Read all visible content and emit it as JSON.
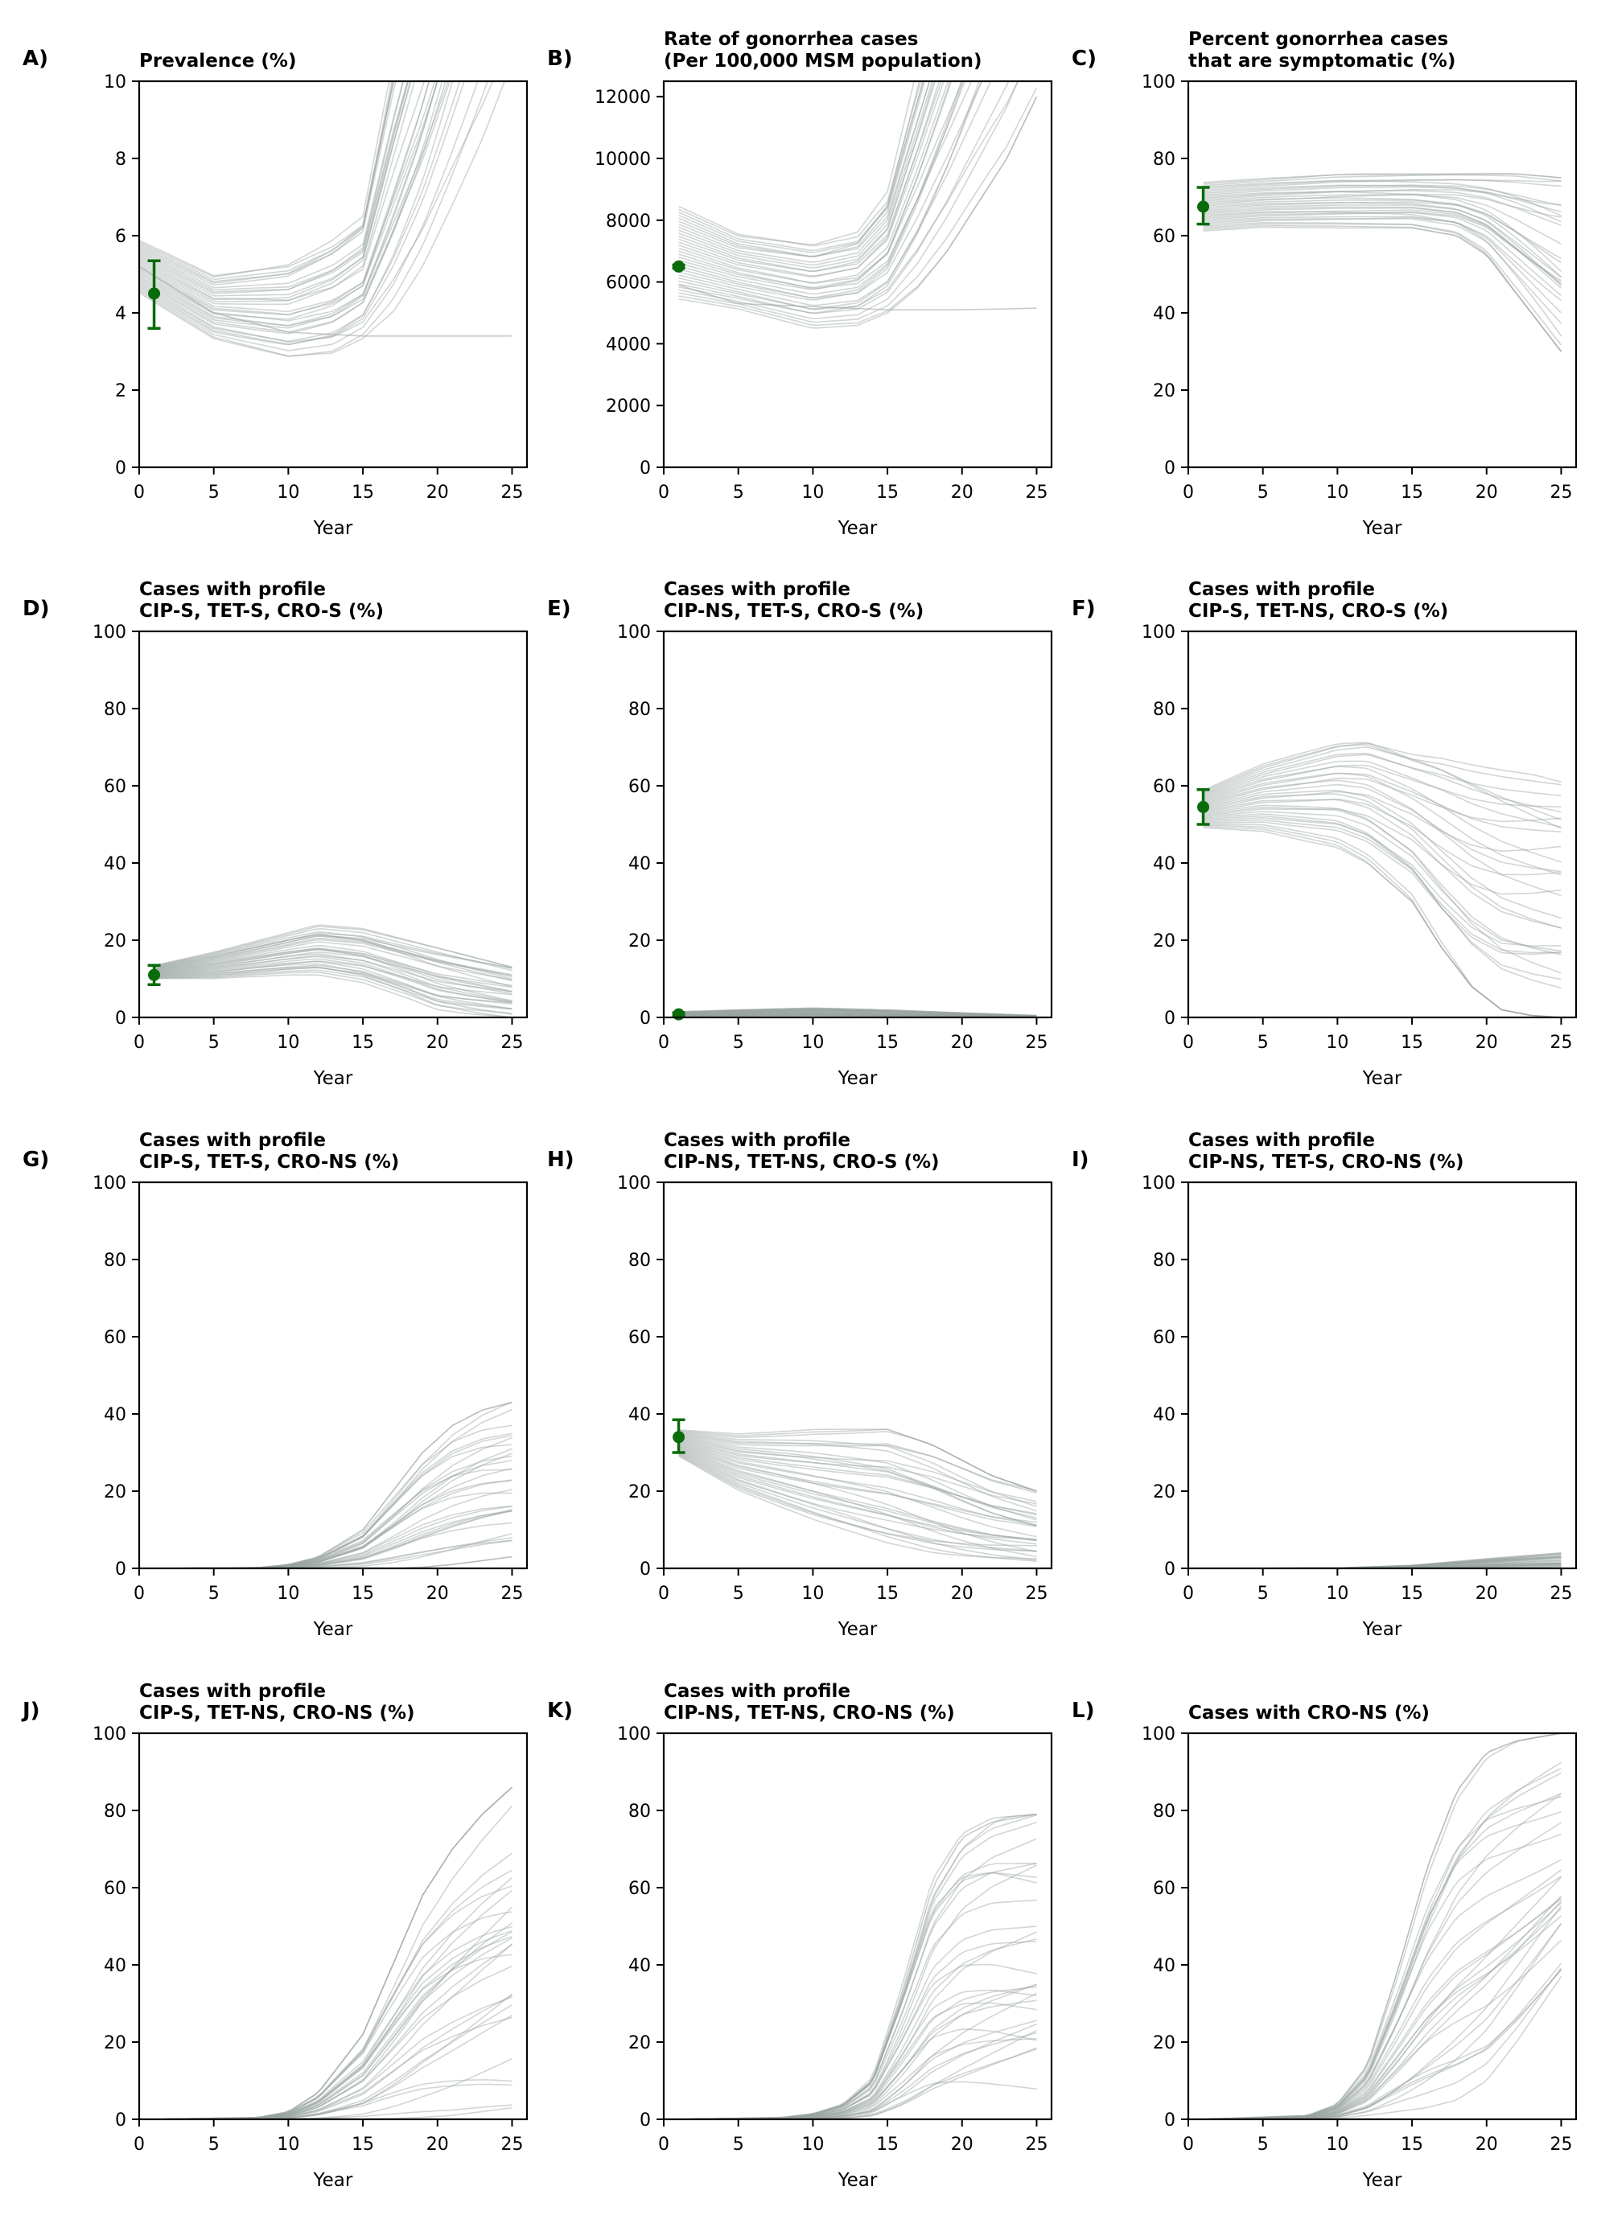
{
  "chart_data": [
    {
      "id": "A",
      "letter": "A)",
      "type": "line",
      "title_lines": [
        "Prevalence (%)"
      ],
      "xlabel": "Year",
      "xlim": [
        0,
        26
      ],
      "xticks": [
        0,
        5,
        10,
        15,
        20,
        25
      ],
      "ylim": [
        0,
        10
      ],
      "yticks": [
        0,
        2,
        4,
        6,
        8,
        10
      ],
      "bands": [
        {
          "x": [
            0,
            5,
            10,
            13,
            15,
            17,
            19,
            21,
            23,
            25
          ],
          "lo": [
            4.5,
            3.3,
            2.8,
            2.9,
            3.3,
            4.0,
            5.2,
            6.8,
            8.5,
            10.5
          ],
          "hi": [
            5.9,
            5.0,
            5.3,
            5.9,
            6.5,
            10.5,
            14,
            18,
            22,
            26
          ]
        }
      ],
      "series": [
        {
          "x": [
            0,
            5,
            10,
            15,
            20,
            25
          ],
          "y": [
            5.2,
            4.0,
            3.5,
            3.4,
            3.4,
            3.4
          ]
        }
      ],
      "observed": [
        {
          "x": 1,
          "y": 4.5,
          "err_lo": 3.6,
          "err_hi": 5.35
        }
      ]
    },
    {
      "id": "B",
      "letter": "B)",
      "type": "line",
      "title_lines": [
        "Rate of gonorrhea cases",
        "(Per 100,000 MSM population)"
      ],
      "xlabel": "Year",
      "xlim": [
        0,
        26
      ],
      "xticks": [
        0,
        5,
        10,
        15,
        20,
        25
      ],
      "ylim": [
        0,
        12500
      ],
      "yticks": [
        0,
        2000,
        4000,
        6000,
        8000,
        10000,
        12000
      ],
      "bands": [
        {
          "x": [
            1,
            5,
            10,
            13,
            15,
            17,
            19,
            21,
            23,
            25
          ],
          "lo": [
            5400,
            5100,
            4500,
            4600,
            5000,
            5800,
            7000,
            8500,
            10000,
            12000
          ],
          "hi": [
            8500,
            7600,
            7300,
            7700,
            9000,
            13000,
            17000,
            21000,
            25000,
            29000
          ]
        }
      ],
      "series": [
        {
          "x": [
            1,
            5,
            10,
            15,
            20,
            25
          ],
          "y": [
            5900,
            5300,
            5200,
            5100,
            5100,
            5150
          ]
        }
      ],
      "observed": [
        {
          "x": 1,
          "y": 6500,
          "err_lo": 6450,
          "err_hi": 6550
        }
      ]
    },
    {
      "id": "C",
      "letter": "C)",
      "type": "line",
      "title_lines": [
        "Percent gonorrhea cases",
        "that are symptomatic (%)"
      ],
      "xlabel": "Year",
      "xlim": [
        0,
        26
      ],
      "xticks": [
        0,
        5,
        10,
        15,
        20,
        25
      ],
      "ylim": [
        0,
        100
      ],
      "yticks": [
        0,
        20,
        40,
        60,
        80,
        100
      ],
      "bands": [
        {
          "x": [
            1,
            5,
            10,
            15,
            18,
            20,
            22,
            25
          ],
          "lo": [
            61,
            62,
            62,
            62,
            60,
            55,
            45,
            30
          ],
          "hi": [
            74,
            75,
            76,
            76,
            76,
            76,
            76,
            75
          ]
        }
      ],
      "observed": [
        {
          "x": 1,
          "y": 67.5,
          "err_lo": 63,
          "err_hi": 72.5
        }
      ]
    },
    {
      "id": "D",
      "letter": "D)",
      "type": "line",
      "title_lines": [
        "Cases with profile",
        "CIP-S, TET-S, CRO-S (%)"
      ],
      "xlabel": "Year",
      "xlim": [
        0,
        26
      ],
      "xticks": [
        0,
        5,
        10,
        15,
        20,
        25
      ],
      "ylim": [
        0,
        100
      ],
      "yticks": [
        0,
        20,
        40,
        60,
        80,
        100
      ],
      "bands": [
        {
          "x": [
            1,
            5,
            10,
            12,
            15,
            18,
            20,
            22,
            25
          ],
          "lo": [
            10,
            10,
            11,
            11,
            9,
            5,
            2,
            1,
            0
          ],
          "hi": [
            13.5,
            17,
            22,
            24,
            23,
            20,
            18,
            16,
            13
          ]
        }
      ],
      "observed": [
        {
          "x": 1,
          "y": 11,
          "err_lo": 8.5,
          "err_hi": 13.5
        }
      ]
    },
    {
      "id": "E",
      "letter": "E)",
      "type": "line",
      "title_lines": [
        "Cases with profile",
        "CIP-NS, TET-S, CRO-S (%)"
      ],
      "xlabel": "Year",
      "xlim": [
        0,
        26
      ],
      "xticks": [
        0,
        5,
        10,
        15,
        20,
        25
      ],
      "ylim": [
        0,
        100
      ],
      "yticks": [
        0,
        20,
        40,
        60,
        80,
        100
      ],
      "bands": [
        {
          "x": [
            1,
            5,
            10,
            15,
            20,
            25
          ],
          "lo": [
            0.2,
            0.3,
            0.3,
            0.2,
            0.1,
            0
          ],
          "hi": [
            1.5,
            2.0,
            2.5,
            2.0,
            1.2,
            0.5
          ]
        }
      ],
      "observed": [
        {
          "x": 1,
          "y": 0.8,
          "err_lo": 0.4,
          "err_hi": 1.2
        }
      ]
    },
    {
      "id": "F",
      "letter": "F)",
      "type": "line",
      "title_lines": [
        "Cases with profile",
        "CIP-S, TET-NS, CRO-S (%)"
      ],
      "xlabel": "Year",
      "xlim": [
        0,
        26
      ],
      "xticks": [
        0,
        5,
        10,
        15,
        20,
        25
      ],
      "ylim": [
        0,
        100
      ],
      "yticks": [
        0,
        20,
        40,
        60,
        80,
        100
      ],
      "bands": [
        {
          "x": [
            1,
            5,
            10,
            12,
            15,
            17,
            19,
            21,
            23,
            25
          ],
          "lo": [
            49,
            48,
            44,
            40,
            30,
            18,
            8,
            2,
            0.5,
            0
          ],
          "hi": [
            59,
            66,
            72,
            73,
            70,
            69,
            67,
            65,
            63,
            61
          ]
        }
      ],
      "observed": [
        {
          "x": 1,
          "y": 54.5,
          "err_lo": 50,
          "err_hi": 59
        }
      ]
    },
    {
      "id": "G",
      "letter": "G)",
      "type": "line",
      "title_lines": [
        "Cases with profile",
        "CIP-S, TET-S, CRO-NS (%)"
      ],
      "xlabel": "Year",
      "xlim": [
        0,
        26
      ],
      "xticks": [
        0,
        5,
        10,
        15,
        20,
        25
      ],
      "ylim": [
        0,
        100
      ],
      "yticks": [
        0,
        20,
        40,
        60,
        80,
        100
      ],
      "bands": [
        {
          "x": [
            1,
            8,
            10,
            12,
            15,
            17,
            19,
            21,
            23,
            25
          ],
          "lo": [
            0,
            0,
            0,
            0,
            0,
            0,
            0.3,
            1,
            2,
            3
          ],
          "hi": [
            0,
            0.2,
            1,
            3,
            10,
            20,
            30,
            37,
            41,
            43
          ]
        }
      ]
    },
    {
      "id": "H",
      "letter": "H)",
      "type": "line",
      "title_lines": [
        "Cases with profile",
        "CIP-NS, TET-NS, CRO-S (%)"
      ],
      "xlabel": "Year",
      "xlim": [
        0,
        26
      ],
      "xticks": [
        0,
        5,
        10,
        15,
        20,
        25
      ],
      "ylim": [
        0,
        100
      ],
      "yticks": [
        0,
        20,
        40,
        60,
        80,
        100
      ],
      "bands": [
        {
          "x": [
            1,
            5,
            10,
            15,
            18,
            20,
            22,
            25
          ],
          "lo": [
            29,
            20,
            12,
            5,
            2,
            1,
            0.5,
            0
          ],
          "hi": [
            36,
            35,
            36,
            36,
            32,
            28,
            24,
            20
          ]
        }
      ],
      "observed": [
        {
          "x": 1,
          "y": 34,
          "err_lo": 30,
          "err_hi": 38.5
        }
      ]
    },
    {
      "id": "I",
      "letter": "I)",
      "type": "line",
      "title_lines": [
        "Cases with profile",
        "CIP-NS, TET-S, CRO-NS (%)"
      ],
      "xlabel": "Year",
      "xlim": [
        0,
        26
      ],
      "xticks": [
        0,
        5,
        10,
        15,
        20,
        25
      ],
      "ylim": [
        0,
        100
      ],
      "yticks": [
        0,
        20,
        40,
        60,
        80,
        100
      ],
      "bands": [
        {
          "x": [
            1,
            10,
            15,
            20,
            25
          ],
          "lo": [
            0,
            0,
            0,
            0,
            0
          ],
          "hi": [
            0,
            0.1,
            0.8,
            2.5,
            4
          ]
        }
      ]
    },
    {
      "id": "J",
      "letter": "J)",
      "type": "line",
      "title_lines": [
        "Cases with profile",
        "CIP-S, TET-NS, CRO-NS (%)"
      ],
      "xlabel": "Year",
      "xlim": [
        0,
        26
      ],
      "xticks": [
        0,
        5,
        10,
        15,
        20,
        25
      ],
      "ylim": [
        0,
        100
      ],
      "yticks": [
        0,
        20,
        40,
        60,
        80,
        100
      ],
      "bands": [
        {
          "x": [
            1,
            8,
            10,
            12,
            15,
            17,
            19,
            21,
            23,
            25
          ],
          "lo": [
            0,
            0,
            0,
            0,
            0,
            0.2,
            0.5,
            1,
            2,
            3
          ],
          "hi": [
            0,
            0.5,
            2,
            7,
            22,
            40,
            58,
            70,
            79,
            86
          ]
        }
      ]
    },
    {
      "id": "K",
      "letter": "K)",
      "type": "line",
      "title_lines": [
        "Cases with profile",
        "CIP-NS, TET-NS, CRO-NS (%)"
      ],
      "xlabel": "Year",
      "xlim": [
        0,
        26
      ],
      "xticks": [
        0,
        5,
        10,
        15,
        20,
        25
      ],
      "ylim": [
        0,
        100
      ],
      "yticks": [
        0,
        20,
        40,
        60,
        80,
        100
      ],
      "bands": [
        {
          "x": [
            1,
            8,
            10,
            12,
            14,
            16,
            18,
            20,
            22,
            25
          ],
          "lo": [
            0,
            0,
            0,
            0,
            0,
            0.2,
            0.5,
            1,
            2,
            4
          ],
          "hi": [
            0,
            0.5,
            1.5,
            4,
            11,
            35,
            62,
            74,
            78,
            79
          ]
        }
      ],
      "series": [
        {
          "x": [
            1,
            8,
            10,
            12,
            14,
            16,
            18,
            20,
            22,
            25
          ],
          "y": [
            0,
            0.4,
            1.3,
            3.5,
            10,
            33,
            60,
            73,
            77,
            79
          ]
        }
      ]
    },
    {
      "id": "L",
      "letter": "L)",
      "type": "line",
      "title_lines": [
        "Cases with CRO-NS (%)"
      ],
      "xlabel": "Year",
      "xlim": [
        0,
        26
      ],
      "xticks": [
        0,
        5,
        10,
        15,
        20,
        25
      ],
      "ylim": [
        0,
        100
      ],
      "yticks": [
        0,
        20,
        40,
        60,
        80,
        100
      ],
      "bands": [
        {
          "x": [
            1,
            8,
            10,
            12,
            14,
            16,
            18,
            20,
            22,
            25
          ],
          "lo": [
            0,
            0,
            0.3,
            1,
            2,
            3,
            5,
            10,
            20,
            37
          ],
          "hi": [
            0,
            1,
            4,
            14,
            38,
            65,
            85,
            95,
            98,
            100
          ]
        }
      ]
    }
  ]
}
